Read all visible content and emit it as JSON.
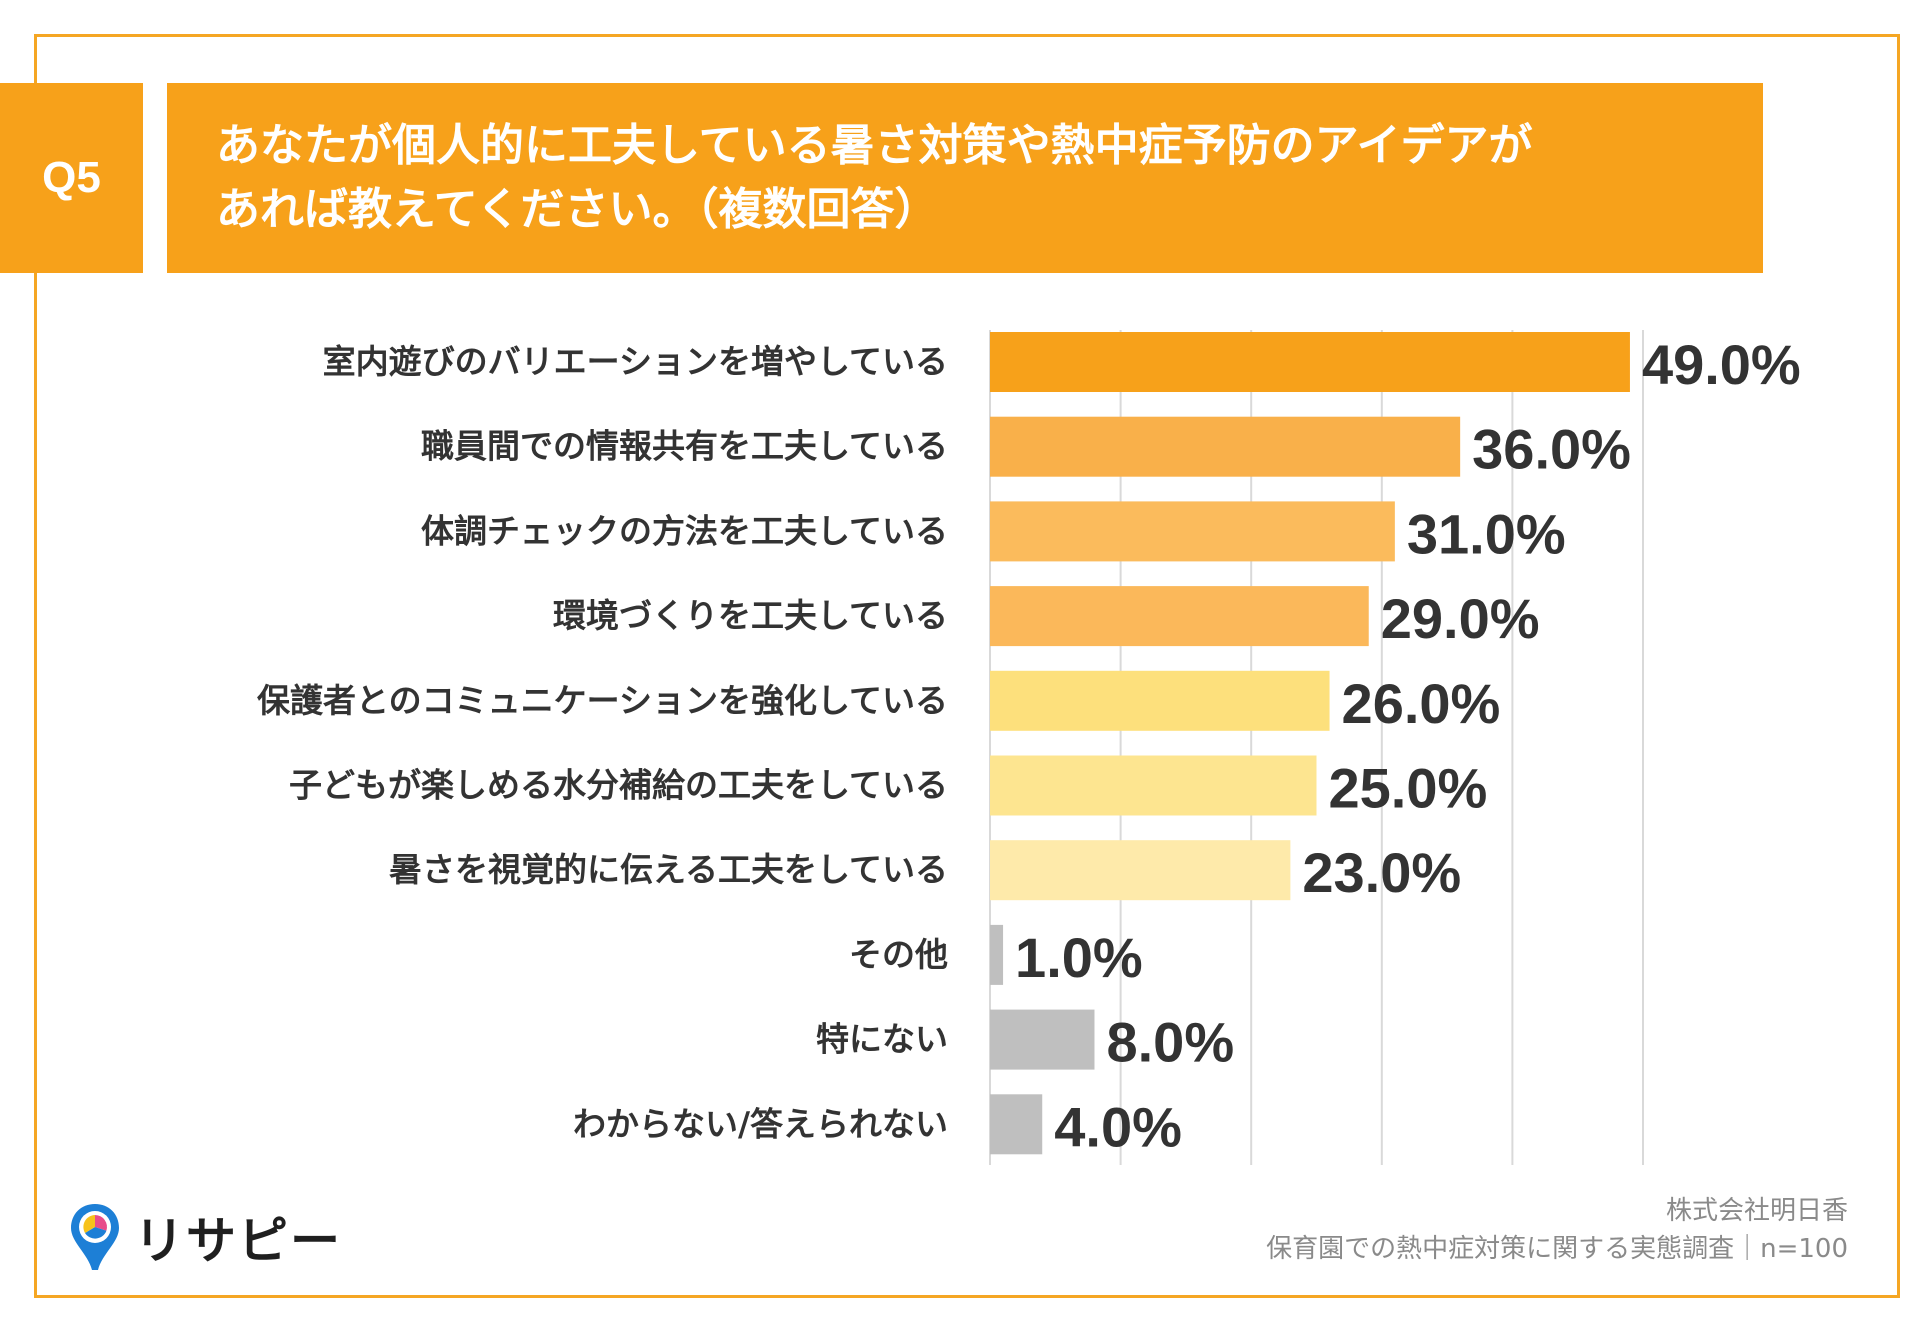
{
  "question": {
    "badge": "Q5",
    "line1": "あなたが個人的に工夫している暑さ対策や熱中症予防のアイデアが",
    "line2": "あれば教えてください。（複数回答）"
  },
  "chart_data": {
    "type": "bar",
    "orientation": "horizontal",
    "categories": [
      "室内遊びのバリエーションを増やしている",
      "職員間での情報共有を工夫している",
      "体調チェックの方法を工夫している",
      "環境づくりを工夫している",
      "保護者とのコミュニケーションを強化している",
      "子どもが楽しめる水分補給の工夫をしている",
      "暑さを視覚的に伝える工夫をしている",
      "その他",
      "特にない",
      "わからない/答えられない"
    ],
    "values": [
      49.0,
      36.0,
      31.0,
      29.0,
      26.0,
      25.0,
      23.0,
      1.0,
      8.0,
      4.0
    ],
    "value_labels": [
      "49.0%",
      "36.0%",
      "31.0%",
      "29.0%",
      "26.0%",
      "25.0%",
      "23.0%",
      "1.0%",
      "8.0%",
      "4.0%"
    ],
    "bar_colors": [
      "#f7a11a",
      "#f9b04a",
      "#fbbb5c",
      "#fbb85a",
      "#fde07c",
      "#fde590",
      "#feeaaa",
      "#bfbfbf",
      "#bfbfbf",
      "#bfbfbf"
    ],
    "xlim": [
      0,
      50
    ],
    "grid": true,
    "xlabel": "",
    "ylabel": ""
  },
  "footer": {
    "company": "株式会社明日香",
    "survey": "保育園での熱中症対策に関する実態調査｜n=100"
  },
  "logo": {
    "text": "リサピー",
    "icon": "map-pin-pie-icon"
  }
}
